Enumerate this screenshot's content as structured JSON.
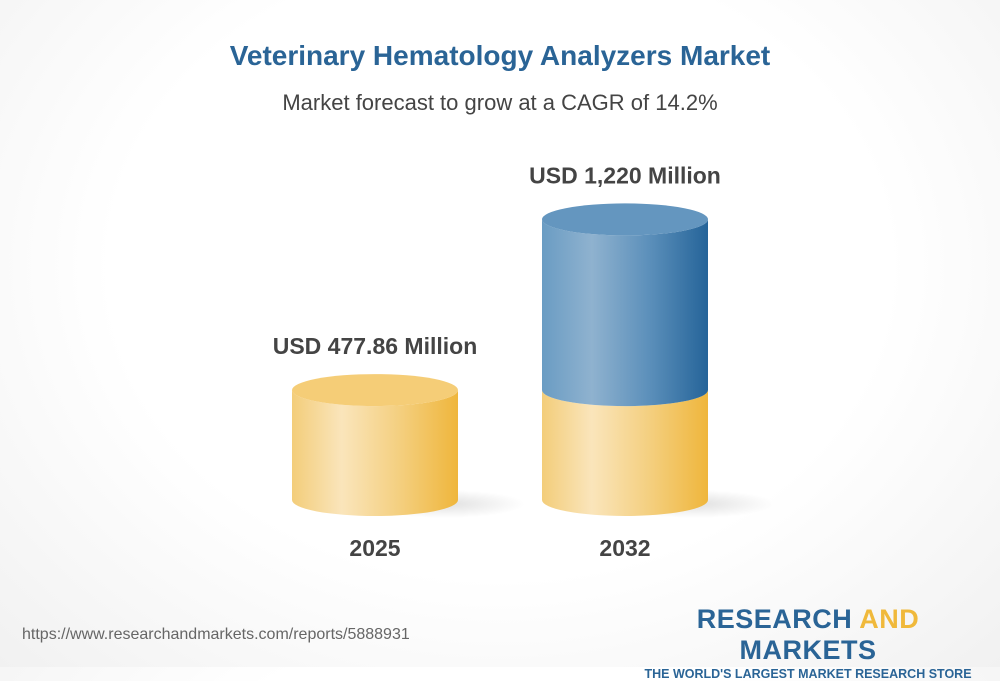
{
  "chart_data": {
    "type": "bar",
    "style": "3d-cylinder",
    "title": "Veterinary Hematology Analyzers Market",
    "subtitle": "Market forecast to grow at a CAGR of 14.2%",
    "categories": [
      "2025",
      "2032"
    ],
    "values": [
      477.86,
      1220
    ],
    "data_labels": [
      "USD 477.86 Million",
      "USD 1,220 Million"
    ],
    "xlabel": "",
    "ylabel": "",
    "grid": false,
    "colors": {
      "base": "#f0b93b",
      "growth": "#2a6496"
    }
  },
  "footer": {
    "url": "https://www.researchandmarkets.com/reports/5888931",
    "logo_word1": "RESEARCH ",
    "logo_word2": "AND",
    "logo_word3": " MARKETS",
    "logo_tagline": "THE WORLD'S LARGEST MARKET RESEARCH STORE"
  }
}
